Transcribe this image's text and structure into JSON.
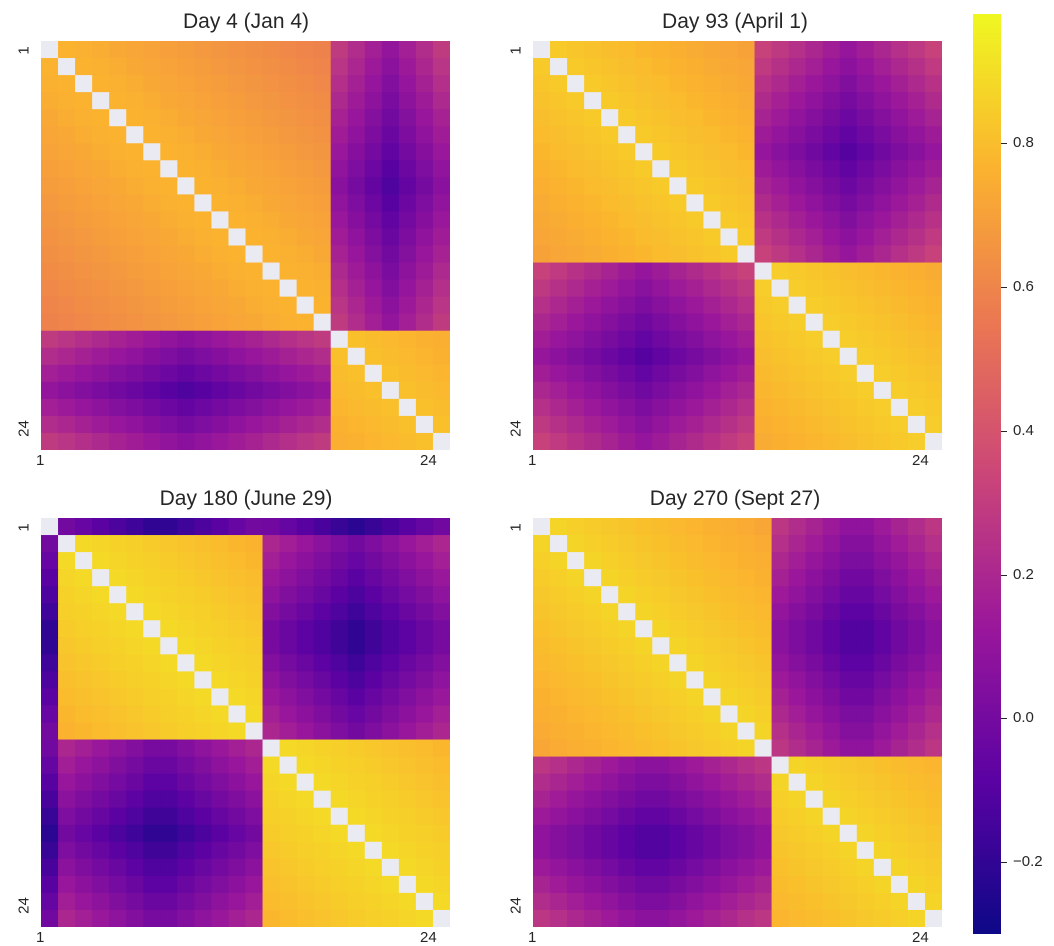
{
  "chart_data": [
    {
      "type": "heatmap",
      "title": "Day 4 (Jan 4)",
      "size": 24,
      "xticks": [
        "1",
        "24"
      ],
      "yticks": [
        "1",
        "24"
      ],
      "blocks": [
        [
          1,
          17
        ],
        [
          18,
          24
        ]
      ],
      "within": [
        0.78,
        0.82
      ],
      "between": -0.12,
      "notes": "diagonal cells masked (light gray)"
    },
    {
      "type": "heatmap",
      "title": "Day 93 (April 1)",
      "size": 24,
      "xticks": [
        "1",
        "24"
      ],
      "yticks": [
        "1",
        "24"
      ],
      "blocks": [
        [
          1,
          13
        ],
        [
          14,
          24
        ]
      ],
      "within": [
        0.85,
        0.86
      ],
      "between": -0.1
    },
    {
      "type": "heatmap",
      "title": "Day 180 (June 29)",
      "size": 24,
      "xticks": [
        "1",
        "24"
      ],
      "yticks": [
        "1",
        "24"
      ],
      "blocks": [
        [
          1,
          1
        ],
        [
          2,
          13
        ],
        [
          14,
          24
        ]
      ],
      "within": [
        0.0,
        0.9,
        0.9
      ],
      "between": -0.22
    },
    {
      "type": "heatmap",
      "title": "Day 270 (Sept 27)",
      "size": 24,
      "xticks": [
        "1",
        "24"
      ],
      "yticks": [
        "1",
        "24"
      ],
      "blocks": [
        [
          1,
          14
        ],
        [
          15,
          24
        ]
      ],
      "within": [
        0.88,
        0.88
      ],
      "between": -0.15
    }
  ],
  "colorbar": {
    "range": [
      -0.3,
      0.98
    ],
    "ticks": [
      {
        "value": 0.8,
        "label": "0.8"
      },
      {
        "value": 0.6,
        "label": "0.6"
      },
      {
        "value": 0.4,
        "label": "0.4"
      },
      {
        "value": 0.2,
        "label": "0.2"
      },
      {
        "value": 0.0,
        "label": "0.0"
      },
      {
        "value": -0.2,
        "label": "−0.2"
      }
    ],
    "colormap": [
      "#0d0887",
      "#5b02a3",
      "#9a179b",
      "#cb4678",
      "#eb7852",
      "#fbb32f",
      "#eff821"
    ]
  },
  "colors": {
    "masked": "#eaeaf2"
  }
}
